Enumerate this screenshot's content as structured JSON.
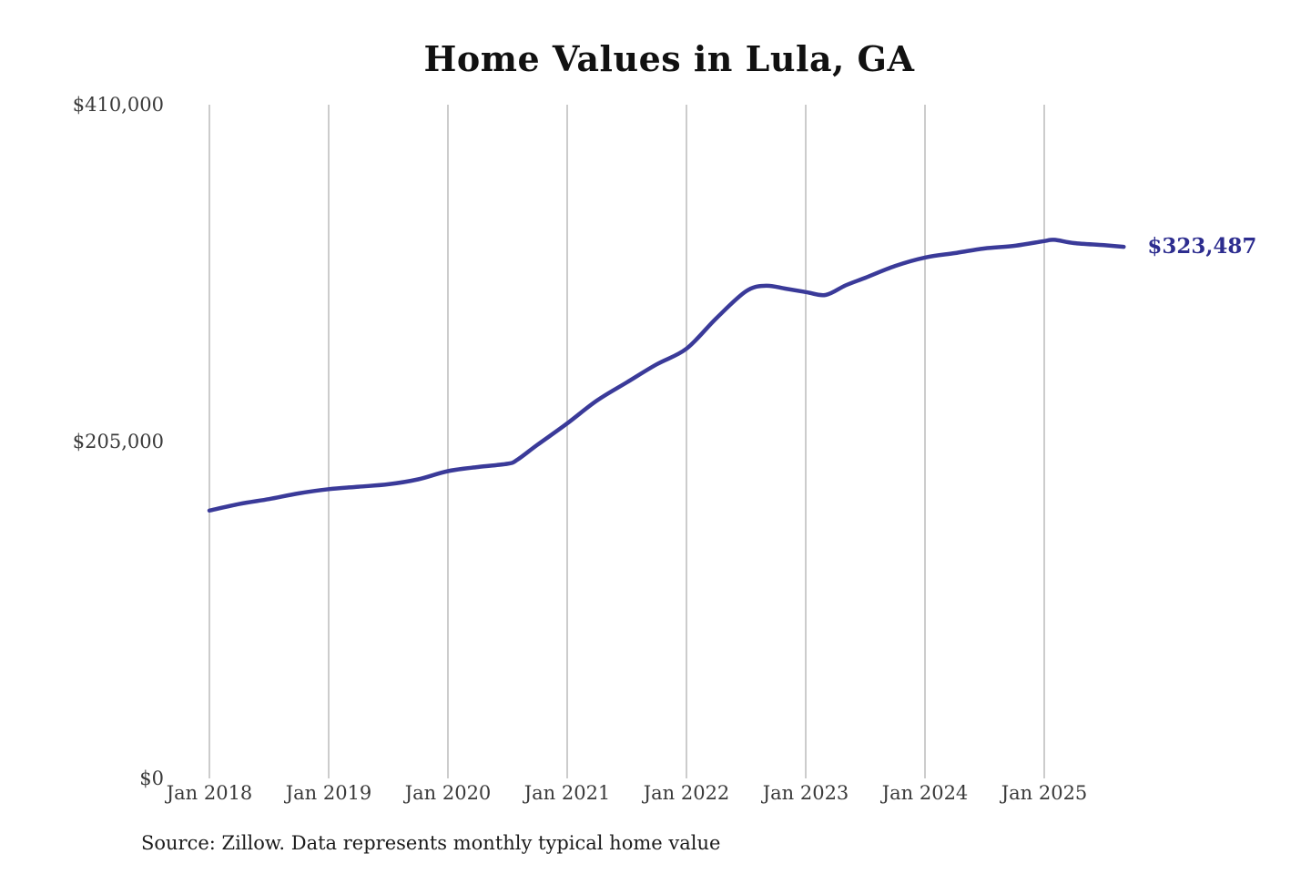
{
  "page": {
    "background_color": "#ffffff"
  },
  "chart": {
    "title": "Home Values in Lula, GA",
    "source_note": "Source: Zillow. Data represents monthly typical home value"
  },
  "chart_data": {
    "type": "line",
    "title": "Home Values in Lula, GA",
    "series_name": "Monthly typical home value (USD)",
    "xlabel": "",
    "ylabel": "",
    "ylim": [
      0,
      410000
    ],
    "xlim": [
      2018.0,
      2025.75
    ],
    "grid": "vertical-only",
    "legend": "none",
    "line_color": "#3a3a99",
    "end_label_color": "#2d2d8f",
    "grid_color": "#cccccc",
    "end_label": "$323,487",
    "end_value": 323487,
    "y_ticks": [
      {
        "label": "$410,000",
        "value": 410000
      },
      {
        "label": "$205,000",
        "value": 205000
      },
      {
        "label": "$0",
        "value": 0
      }
    ],
    "x_ticks": [
      {
        "label": "Jan 2018",
        "year": 2018
      },
      {
        "label": "Jan 2019",
        "year": 2019
      },
      {
        "label": "Jan 2020",
        "year": 2020
      },
      {
        "label": "Jan 2021",
        "year": 2021
      },
      {
        "label": "Jan 2022",
        "year": 2022
      },
      {
        "label": "Jan 2023",
        "year": 2023
      },
      {
        "label": "Jan 2024",
        "year": 2024
      },
      {
        "label": "Jan 2025",
        "year": 2025
      }
    ],
    "points": [
      {
        "date": "2018-01",
        "value": 163000
      },
      {
        "date": "2018-04",
        "value": 167000
      },
      {
        "date": "2018-07",
        "value": 170000
      },
      {
        "date": "2018-10",
        "value": 173500
      },
      {
        "date": "2019-01",
        "value": 176000
      },
      {
        "date": "2019-04",
        "value": 177500
      },
      {
        "date": "2019-07",
        "value": 179000
      },
      {
        "date": "2019-10",
        "value": 182000
      },
      {
        "date": "2020-01",
        "value": 187000
      },
      {
        "date": "2020-04",
        "value": 189500
      },
      {
        "date": "2020-07",
        "value": 191500
      },
      {
        "date": "2020-08",
        "value": 194000
      },
      {
        "date": "2020-10",
        "value": 203000
      },
      {
        "date": "2021-01",
        "value": 216000
      },
      {
        "date": "2021-04",
        "value": 230000
      },
      {
        "date": "2021-07",
        "value": 241000
      },
      {
        "date": "2021-10",
        "value": 252000
      },
      {
        "date": "2022-01",
        "value": 261500
      },
      {
        "date": "2022-04",
        "value": 280000
      },
      {
        "date": "2022-07",
        "value": 296500
      },
      {
        "date": "2022-09",
        "value": 299800
      },
      {
        "date": "2022-11",
        "value": 298000
      },
      {
        "date": "2023-01",
        "value": 296000
      },
      {
        "date": "2023-03",
        "value": 294200
      },
      {
        "date": "2023-05",
        "value": 300000
      },
      {
        "date": "2023-07",
        "value": 304700
      },
      {
        "date": "2023-10",
        "value": 311900
      },
      {
        "date": "2024-01",
        "value": 317000
      },
      {
        "date": "2024-04",
        "value": 319700
      },
      {
        "date": "2024-07",
        "value": 322500
      },
      {
        "date": "2024-10",
        "value": 324100
      },
      {
        "date": "2025-01",
        "value": 327000
      },
      {
        "date": "2025-02",
        "value": 327800
      },
      {
        "date": "2025-04",
        "value": 325800
      },
      {
        "date": "2025-07",
        "value": 324500
      },
      {
        "date": "2025-09",
        "value": 323487
      }
    ]
  }
}
